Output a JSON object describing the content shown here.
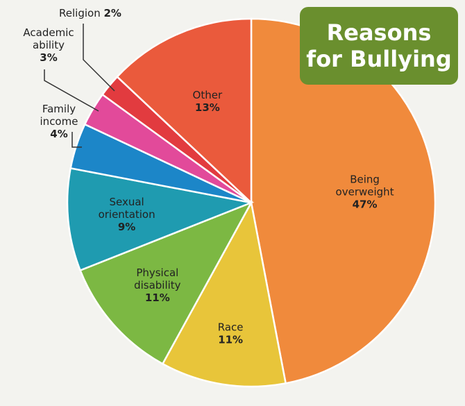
{
  "chart_data": {
    "type": "pie",
    "title_lines": [
      "Reasons",
      "for Bullying"
    ],
    "slices": [
      {
        "label": "Being overweight",
        "value": 47,
        "display": "47%",
        "label_lines": [
          "Being",
          "overweight"
        ],
        "color": "#f08a3c"
      },
      {
        "label": "Race",
        "value": 11,
        "display": "11%",
        "label_lines": [
          "Race"
        ],
        "color": "#e8c53a"
      },
      {
        "label": "Physical disability",
        "value": 11,
        "display": "11%",
        "label_lines": [
          "Physical",
          "disability"
        ],
        "color": "#7cb843"
      },
      {
        "label": "Sexual orientation",
        "value": 9,
        "display": "9%",
        "label_lines": [
          "Sexual",
          "orientation"
        ],
        "color": "#1f9bb0"
      },
      {
        "label": "Family income",
        "value": 4,
        "display": "4%",
        "label_lines": [
          "Family",
          "income"
        ],
        "color": "#1c86c8"
      },
      {
        "label": "Academic ability",
        "value": 3,
        "display": "3%",
        "label_lines": [
          "Academic",
          "ability"
        ],
        "color": "#e24a9a"
      },
      {
        "label": "Religion",
        "value": 2,
        "display": "2%",
        "label_lines": [
          "Religion"
        ],
        "color": "#e23b3f"
      },
      {
        "label": "Other",
        "value": 13,
        "display": "13%",
        "label_lines": [
          "Other"
        ],
        "color": "#ea5a3c"
      }
    ]
  }
}
